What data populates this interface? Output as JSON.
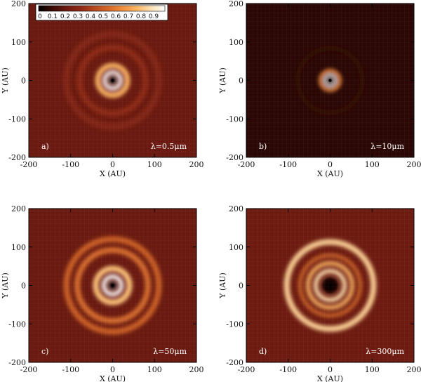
{
  "chart_data": {
    "type": "heatmap",
    "colormap": {
      "ticks": [
        "0",
        "0.1",
        "0.2",
        "0.3",
        "0.4",
        "0.5",
        "0.6",
        "0.7",
        "0.8",
        "0.9"
      ],
      "range": [
        0,
        1
      ],
      "colors": [
        "#000000",
        "#3a0a05",
        "#6b1a10",
        "#8e2a14",
        "#b44a20",
        "#d4692a",
        "#ee9040",
        "#fbb766",
        "#fde2b2",
        "#ffffff"
      ]
    },
    "panels": [
      {
        "panel_label": "a)",
        "wavelength_label": "λ=0.5μm",
        "xlabel": "X (AU)",
        "ylabel": "Y (AU)",
        "xlim": [
          -200,
          200
        ],
        "ylim": [
          -200,
          200
        ],
        "xticks": [
          "-200",
          "-100",
          "0",
          "100",
          "200"
        ],
        "yticks": [
          "-200",
          "-100",
          "0",
          "100",
          "200"
        ],
        "rings": [
          {
            "radius_au": 20,
            "width_au": 9,
            "intensity": 1.0
          },
          {
            "radius_au": 37,
            "width_au": 13,
            "intensity": 0.7
          },
          {
            "radius_au": 82,
            "width_au": 14,
            "intensity": 0.15
          },
          {
            "radius_au": 115,
            "width_au": 16,
            "intensity": 0.1
          }
        ],
        "hole_radius_au": 10
      },
      {
        "panel_label": "b)",
        "wavelength_label": "λ=10μm",
        "xlabel": "X (AU)",
        "ylabel": "Y (AU)",
        "xlim": [
          -200,
          200
        ],
        "ylim": [
          -200,
          200
        ],
        "xticks": [
          "-200",
          "-100",
          "0",
          "100",
          "200"
        ],
        "yticks": [
          "-200",
          "-100",
          "0",
          "100",
          "200"
        ],
        "rings": [
          {
            "radius_au": 13,
            "width_au": 6,
            "intensity": 1.0
          },
          {
            "radius_au": 24,
            "width_au": 9,
            "intensity": 0.6
          },
          {
            "radius_au": 80,
            "width_au": 12,
            "intensity": 0.02
          }
        ],
        "hole_radius_au": 5
      },
      {
        "panel_label": "c)",
        "wavelength_label": "λ=50μm",
        "xlabel": "X (AU)",
        "ylabel": "Y (AU)",
        "xlim": [
          -200,
          200
        ],
        "ylim": [
          -200,
          200
        ],
        "xticks": [
          "-200",
          "-100",
          "0",
          "100",
          "200"
        ],
        "yticks": [
          "-200",
          "-100",
          "0",
          "100",
          "200"
        ],
        "rings": [
          {
            "radius_au": 22,
            "width_au": 10,
            "intensity": 1.0
          },
          {
            "radius_au": 42,
            "width_au": 14,
            "intensity": 0.75
          },
          {
            "radius_au": 88,
            "width_au": 14,
            "intensity": 0.45
          },
          {
            "radius_au": 115,
            "width_au": 14,
            "intensity": 0.4
          }
        ],
        "hole_radius_au": 10
      },
      {
        "panel_label": "d)",
        "wavelength_label": "λ=300μm",
        "xlabel": "X (AU)",
        "ylabel": "Y (AU)",
        "xlim": [
          -200,
          200
        ],
        "ylim": [
          -200,
          200
        ],
        "xticks": [
          "-200",
          "-100",
          "0",
          "100",
          "200"
        ],
        "yticks": [
          "-200",
          "-100",
          "0",
          "100",
          "200"
        ],
        "rings": [
          {
            "radius_au": 36,
            "width_au": 10,
            "intensity": 0.85
          },
          {
            "radius_au": 55,
            "width_au": 10,
            "intensity": 0.7
          },
          {
            "radius_au": 75,
            "width_au": 8,
            "intensity": 0.45
          },
          {
            "radius_au": 108,
            "width_au": 14,
            "intensity": 0.8
          }
        ],
        "hole_radius_au": 20
      }
    ]
  }
}
